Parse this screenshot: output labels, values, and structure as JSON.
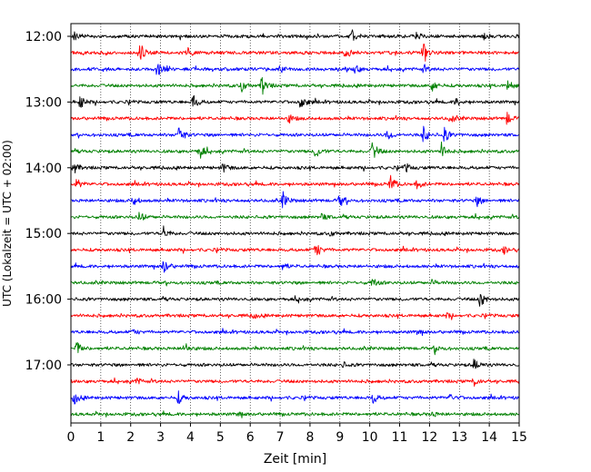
{
  "chart_data": {
    "type": "line",
    "xlabel": "Zeit  [min]",
    "ylabel": "UTC (Lokalzeit = UTC + 02:00)",
    "xlim": [
      0,
      15
    ],
    "x_ticks": [
      "0",
      "1",
      "2",
      "3",
      "4",
      "5",
      "6",
      "7",
      "8",
      "9",
      "10",
      "11",
      "12",
      "13",
      "14",
      "15"
    ],
    "y_ticks": [
      "12:00",
      "13:00",
      "14:00",
      "15:00",
      "16:00",
      "17:00"
    ],
    "grid": "vertical dotted lines at each minute",
    "trace_interval_minutes": 15,
    "start_time": "12:00",
    "colors": [
      "#000000",
      "#ff0000",
      "#0000ff",
      "#008000"
    ],
    "traces": [
      {
        "time": "12:00",
        "color": "#000000",
        "events": [
          [
            0.1,
            0.6
          ],
          [
            9.4,
            1.0
          ],
          [
            11.6,
            0.5
          ],
          [
            13.8,
            0.4
          ]
        ]
      },
      {
        "time": "12:15",
        "color": "#ff0000",
        "events": [
          [
            2.3,
            1.3
          ],
          [
            3.9,
            0.6
          ],
          [
            9.2,
            0.7
          ],
          [
            11.8,
            1.3
          ]
        ]
      },
      {
        "time": "12:30",
        "color": "#0000ff",
        "events": [
          [
            2.9,
            1.0
          ],
          [
            7.0,
            0.5
          ],
          [
            9.5,
            0.6
          ],
          [
            11.8,
            0.4
          ]
        ]
      },
      {
        "time": "12:45",
        "color": "#008000",
        "events": [
          [
            5.7,
            0.8
          ],
          [
            6.4,
            1.2
          ],
          [
            12.1,
            0.7
          ],
          [
            14.6,
            0.8
          ]
        ]
      },
      {
        "time": "13:00",
        "color": "#000000",
        "events": [
          [
            0.3,
            0.9
          ],
          [
            4.1,
            0.9
          ],
          [
            7.7,
            1.0
          ],
          [
            12.9,
            0.5
          ]
        ]
      },
      {
        "time": "13:15",
        "color": "#ff0000",
        "events": [
          [
            7.3,
            0.5
          ],
          [
            12.7,
            0.5
          ],
          [
            14.6,
            0.8
          ]
        ]
      },
      {
        "time": "13:30",
        "color": "#0000ff",
        "events": [
          [
            3.6,
            1.3
          ],
          [
            10.6,
            0.7
          ],
          [
            11.8,
            1.0
          ],
          [
            12.5,
            0.9
          ]
        ]
      },
      {
        "time": "13:45",
        "color": "#008000",
        "events": [
          [
            4.3,
            1.0
          ],
          [
            8.2,
            0.9
          ],
          [
            10.1,
            1.2
          ],
          [
            12.4,
            1.0
          ]
        ]
      },
      {
        "time": "14:00",
        "color": "#000000",
        "events": [
          [
            0.1,
            0.7
          ],
          [
            5.1,
            0.6
          ],
          [
            11.2,
            0.5
          ]
        ]
      },
      {
        "time": "14:15",
        "color": "#ff0000",
        "events": [
          [
            0.2,
            0.6
          ],
          [
            10.7,
            1.0
          ],
          [
            11.6,
            0.6
          ]
        ]
      },
      {
        "time": "14:30",
        "color": "#0000ff",
        "events": [
          [
            2.1,
            0.6
          ],
          [
            7.1,
            1.0
          ],
          [
            9.0,
            0.8
          ],
          [
            13.6,
            0.6
          ]
        ]
      },
      {
        "time": "14:45",
        "color": "#008000",
        "events": [
          [
            2.3,
            0.7
          ],
          [
            8.4,
            0.4
          ]
        ]
      },
      {
        "time": "15:00",
        "color": "#000000",
        "events": [
          [
            3.1,
            0.8
          ],
          [
            8.7,
            0.3
          ]
        ]
      },
      {
        "time": "15:15",
        "color": "#ff0000",
        "events": [
          [
            8.2,
            1.0
          ],
          [
            14.5,
            0.4
          ]
        ]
      },
      {
        "time": "15:30",
        "color": "#0000ff",
        "events": [
          [
            3.1,
            1.0
          ],
          [
            7.1,
            0.4
          ]
        ]
      },
      {
        "time": "15:45",
        "color": "#008000",
        "events": [
          [
            10.1,
            0.6
          ],
          [
            12.1,
            0.3
          ]
        ]
      },
      {
        "time": "16:00",
        "color": "#000000",
        "events": [
          [
            13.7,
            1.0
          ],
          [
            7.6,
            0.3
          ]
        ]
      },
      {
        "time": "16:15",
        "color": "#ff0000",
        "events": [
          [
            6.1,
            0.3
          ],
          [
            12.6,
            0.3
          ]
        ]
      },
      {
        "time": "16:30",
        "color": "#0000ff",
        "events": [
          [
            2.1,
            0.3
          ],
          [
            11.6,
            0.3
          ]
        ]
      },
      {
        "time": "16:45",
        "color": "#008000",
        "events": [
          [
            0.2,
            0.8
          ],
          [
            3.8,
            0.7
          ],
          [
            12.2,
            0.5
          ]
        ]
      },
      {
        "time": "17:00",
        "color": "#000000",
        "events": [
          [
            13.5,
            0.8
          ],
          [
            9.1,
            0.3
          ]
        ]
      },
      {
        "time": "17:15",
        "color": "#ff0000",
        "events": [
          [
            2.2,
            0.4
          ],
          [
            13.5,
            0.5
          ]
        ]
      },
      {
        "time": "17:30",
        "color": "#0000ff",
        "events": [
          [
            0.1,
            0.8
          ],
          [
            3.6,
            0.7
          ],
          [
            10.1,
            0.7
          ],
          [
            12.7,
            0.4
          ]
        ]
      },
      {
        "time": "17:45",
        "color": "#008000",
        "events": [
          [
            5.6,
            0.3
          ],
          [
            12.1,
            0.3
          ]
        ]
      }
    ]
  }
}
